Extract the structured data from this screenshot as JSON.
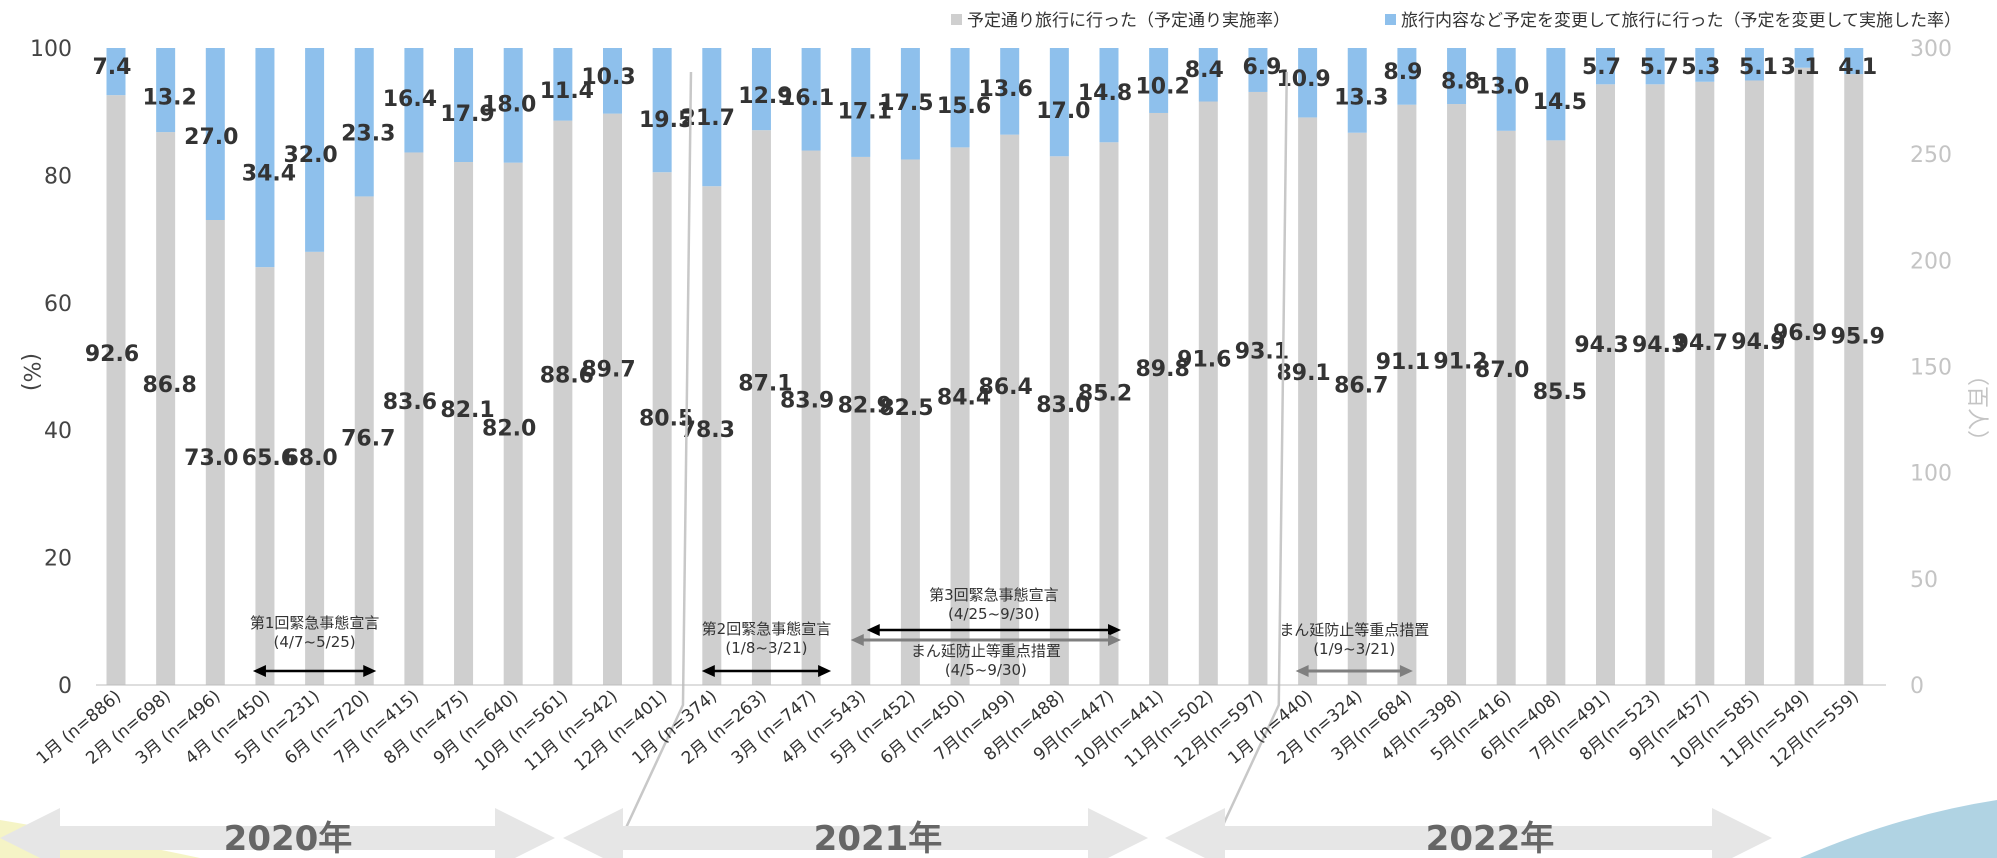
{
  "colors": {
    "gray_bar": "#cfcfcf",
    "blue_bar": "#8ec0ec",
    "axis_right": "#c4c4c4",
    "arrow_black": "#000000",
    "arrow_gray": "#7f7f7f",
    "year_band": "#e6e6e6"
  },
  "chart_data": {
    "type": "bar",
    "stacked": true,
    "categories": [
      "1月 (n=886)",
      "2月 (n=698)",
      "3月 (n=496)",
      "4月 (n=450)",
      "5月 (n=231)",
      "6月 (n=720)",
      "7月 (n=415)",
      "8月 (n=475)",
      "9月 (n=640)",
      "10月 (n=561)",
      "11月 (n=542)",
      "12月 (n=401)",
      "1月 (n=374)",
      "2月 (n=263)",
      "3月 (n=747)",
      "4月 (n=543)",
      "5月 (n=452)",
      "6月 (n=450)",
      "7月(n=499)",
      "8月(n=488)",
      "9月(n=447)",
      "10月(n=441)",
      "11月(n=502)",
      "12月(n=597)",
      "1月 (n=440)",
      "2月 (n=324)",
      "3月(n=684)",
      "4月(n=398)",
      "5月(n=416)",
      "6月(n=408)",
      "7月(n=491)",
      "8月(n=523)",
      "9月(n=457)",
      "10月(n=585)",
      "11月(n=549)",
      "12月(n=559)"
    ],
    "series": [
      {
        "name": "予定通り旅行に行った（予定通り実施率）",
        "color": "#cfcfcf",
        "values": [
          92.6,
          86.8,
          73.0,
          65.6,
          68.0,
          76.7,
          83.6,
          82.1,
          82.0,
          88.6,
          89.7,
          80.5,
          78.3,
          87.1,
          83.9,
          82.9,
          82.5,
          84.4,
          86.4,
          83.0,
          85.2,
          89.8,
          91.6,
          93.1,
          89.1,
          86.7,
          91.1,
          91.2,
          87.0,
          85.5,
          94.3,
          94.3,
          94.7,
          94.9,
          96.9,
          95.9
        ],
        "labels": [
          "92.6",
          "86.8",
          "73.0",
          "65.6",
          "68.0",
          "76.7",
          "83.6",
          "82.1",
          "82.0",
          "88.6",
          "89.7",
          "80.5",
          "78.3",
          "87.1",
          "83.9",
          "82.9",
          "82.5",
          "84.4",
          "86.4",
          "83.0",
          "85.2",
          "89.8",
          "91.6",
          "93.1",
          "89.1",
          "86.7",
          "91.1",
          "91.2",
          "87.0",
          "85.5",
          "94.3",
          "94.3",
          "94.7",
          "94.9",
          "96.9",
          "95.9"
        ]
      },
      {
        "name": "旅行内容など予定を変更して旅行に行った（予定を変更して実施した率）",
        "color": "#8ec0ec",
        "values": [
          7.4,
          13.2,
          27.0,
          34.4,
          32.0,
          23.3,
          16.4,
          17.9,
          18.0,
          11.4,
          10.3,
          19.5,
          21.7,
          12.9,
          16.1,
          17.1,
          17.5,
          15.6,
          13.6,
          17.0,
          14.8,
          10.2,
          8.4,
          6.9,
          10.9,
          13.3,
          8.9,
          8.8,
          13.0,
          14.5,
          5.7,
          5.7,
          5.3,
          5.1,
          3.1,
          4.1
        ],
        "labels": [
          "7.4",
          "13.2",
          "27.0",
          "34.4",
          "32.0",
          "23.3",
          "16.4",
          "17.9",
          "18.0",
          "11.4",
          "10.3",
          "19.5",
          "21.7",
          "12.9",
          "16.1",
          "17.1",
          "17.5",
          "15.6",
          "13.6",
          "17.0",
          "14.8",
          "10.2",
          "8.4",
          "6.9",
          "10.9",
          "13.3",
          "8.9",
          "8.8",
          "13.0",
          "14.5",
          "5.7",
          "5.7",
          "5.3",
          "5.1",
          "3.1",
          "4.1"
        ]
      }
    ],
    "ylabel": "(%)",
    "ylim": [
      0,
      100
    ],
    "yticks": [
      "0",
      "20",
      "40",
      "60",
      "80",
      "100"
    ],
    "y2label": "（百人）",
    "y2lim": [
      0,
      300
    ],
    "y2ticks": [
      "0",
      "50",
      "100",
      "150",
      "200",
      "250",
      "300"
    ],
    "legend_position": "top-right",
    "grid": false,
    "years": [
      "2020年",
      "2021年",
      "2022年"
    ],
    "annotations": [
      {
        "title": "第1回緊急事態宣言",
        "period": "(4/7~5/25)",
        "from_index": 3,
        "to_index": 5,
        "style": "black"
      },
      {
        "title": "第2回緊急事態宣言",
        "period": "(1/8~3/21)",
        "from_index": 12,
        "to_index": 14,
        "style": "black"
      },
      {
        "title": "第3回緊急事態宣言",
        "period": "(4/25~9/30)",
        "from_index": 15,
        "to_index": 20,
        "style": "black"
      },
      {
        "title": "まん延防止等重点措置",
        "period": "(4/5~9/30)",
        "from_index": 15,
        "to_index": 20,
        "style": "gray"
      },
      {
        "title": "まん延防止等重点措置",
        "period": "(1/9~3/21)",
        "from_index": 24,
        "to_index": 26,
        "style": "gray"
      }
    ]
  }
}
